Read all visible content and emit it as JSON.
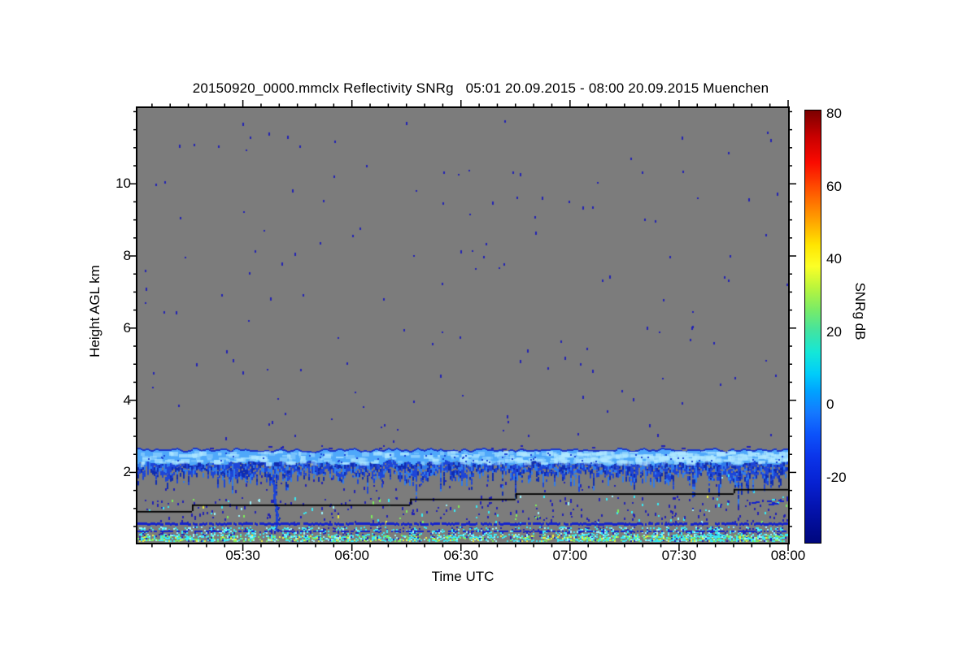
{
  "chart_data": {
    "type": "heatmap",
    "title": "20150920_0000.mmclx Reflectivity SNRg   05:01 20.09.2015 - 08:00 20.09.2015 Muenchen",
    "source_file": "20150920_0000.mmclx",
    "quantity": "Reflectivity SNRg",
    "period_start": "05:01 20.09.2015",
    "period_end": "08:00 20.09.2015",
    "site": "Muenchen",
    "xlabel": "Time UTC",
    "ylabel": "Height AGL km",
    "xlim_minutes": [
      301,
      480
    ],
    "x_ticks": [
      {
        "label": "05:30",
        "m": 330
      },
      {
        "label": "06:00",
        "m": 360
      },
      {
        "label": "06:30",
        "m": 390
      },
      {
        "label": "07:00",
        "m": 420
      },
      {
        "label": "07:30",
        "m": 450
      },
      {
        "label": "08:00",
        "m": 480
      }
    ],
    "x_minor_step_m": 5,
    "ylim_km": [
      0.05,
      12.1
    ],
    "y_ticks": [
      {
        "label": "2",
        "km": 2
      },
      {
        "label": "4",
        "km": 4
      },
      {
        "label": "6",
        "km": 6
      },
      {
        "label": "8",
        "km": 8
      },
      {
        "label": "10",
        "km": 10
      }
    ],
    "y_minor_step_km": 0.5,
    "grid": false,
    "colorbar": {
      "label": "SNRg dB",
      "vlim_bottom_top": [
        -38,
        81
      ],
      "ticks": [
        {
          "label": "80",
          "v": 80
        },
        {
          "label": "60",
          "v": 60
        },
        {
          "label": "40",
          "v": 40
        },
        {
          "label": "20",
          "v": 20
        },
        {
          "label": "0",
          "v": 0
        },
        {
          "label": "-20",
          "v": -20
        }
      ],
      "minor_step_v": 10,
      "jet_stops": [
        [
          0.0,
          "#7b0000"
        ],
        [
          0.06,
          "#c80000"
        ],
        [
          0.12,
          "#fa0a00"
        ],
        [
          0.19,
          "#ff5a00"
        ],
        [
          0.26,
          "#ffa900"
        ],
        [
          0.31,
          "#ffe400"
        ],
        [
          0.36,
          "#fcff26"
        ],
        [
          0.41,
          "#baf53c"
        ],
        [
          0.46,
          "#7aec66"
        ],
        [
          0.51,
          "#42e3a1"
        ],
        [
          0.56,
          "#14e7d8"
        ],
        [
          0.61,
          "#00ccfa"
        ],
        [
          0.65,
          "#00a2ff"
        ],
        [
          0.7,
          "#1478ff"
        ],
        [
          0.75,
          "#0c52fa"
        ],
        [
          0.8,
          "#0b35ea"
        ],
        [
          0.86,
          "#0722d2"
        ],
        [
          0.92,
          "#0413ae"
        ],
        [
          0.97,
          "#010b8f"
        ],
        [
          1.0,
          "#00077d"
        ]
      ]
    },
    "colors": {
      "background": "#7c7c7c",
      "frame": "#000000",
      "navy": "#2222b4",
      "cyan": "#35ecf8",
      "cyan2": "#9af6ff",
      "green": "#7df05a",
      "yellow": "#eef23e",
      "navyline": "#1423cd",
      "cloud_edge": "#1c36c8",
      "cloud_core": "#4fa8fa",
      "cloud_core2": "#2f7bec",
      "cloud_bright": "#b0e8ff",
      "fringe1": "#1d45d8",
      "fringe2": "#0e2cb2",
      "line": "#000000"
    },
    "features": {
      "speckle_zones": [
        {
          "km": [
            2.85,
            11.95
          ],
          "count": 150,
          "cells": {
            "navy": 1.0
          }
        },
        {
          "km": [
            1.5,
            2.05
          ],
          "count": 60,
          "cells": {
            "navy": 0.95,
            "cyan": 0.05
          }
        },
        {
          "km": [
            0.61,
            1.36
          ],
          "count": 300,
          "cells": {
            "navy": 0.76,
            "cyan": 0.16,
            "green": 0.05,
            "yellow": 0.03
          }
        }
      ],
      "cloud_band": {
        "top_km": 2.64,
        "core_km": [
          2.2,
          2.6
        ],
        "bright_patches": 300,
        "right_boost_from_m": 400,
        "extra_right_patches": 150
      },
      "top_dashes": {
        "km": [
          2.66,
          2.76
        ],
        "count": 16
      },
      "step_line": {
        "segments": [
          {
            "t0": 301,
            "t1": 316,
            "km": 0.93
          },
          {
            "t0": 316,
            "t1": 376,
            "km": 1.11
          },
          {
            "t0": 376,
            "t1": 405,
            "km": 1.27
          },
          {
            "t0": 405,
            "t1": 465,
            "km": 1.42
          },
          {
            "t0": 465,
            "t1": 480,
            "km": 1.54
          }
        ]
      },
      "virga": {
        "m": 338,
        "top_km": 1.95,
        "bottom_km": 0.42
      },
      "boundary_layers": [
        {
          "type": "line",
          "km": 0.57,
          "density": 0.9,
          "thick": 3
        },
        {
          "type": "band",
          "km": [
            0.3,
            0.5
          ],
          "cells": {
            "cyan": 0.3,
            "navy": 0.1
          }
        },
        {
          "type": "line",
          "km": 0.365,
          "density": 0.55,
          "thick": 2
        },
        {
          "type": "band",
          "km": [
            0.12,
            0.28
          ],
          "cells": {
            "cyan": 0.46,
            "green": 0.13,
            "yellow": 0.08,
            "navy": 0.05
          }
        }
      ],
      "dash_cluster": {
        "t": [
          468,
          479
        ],
        "km": [
          1.13,
          1.29
        ],
        "count": 12
      }
    }
  }
}
